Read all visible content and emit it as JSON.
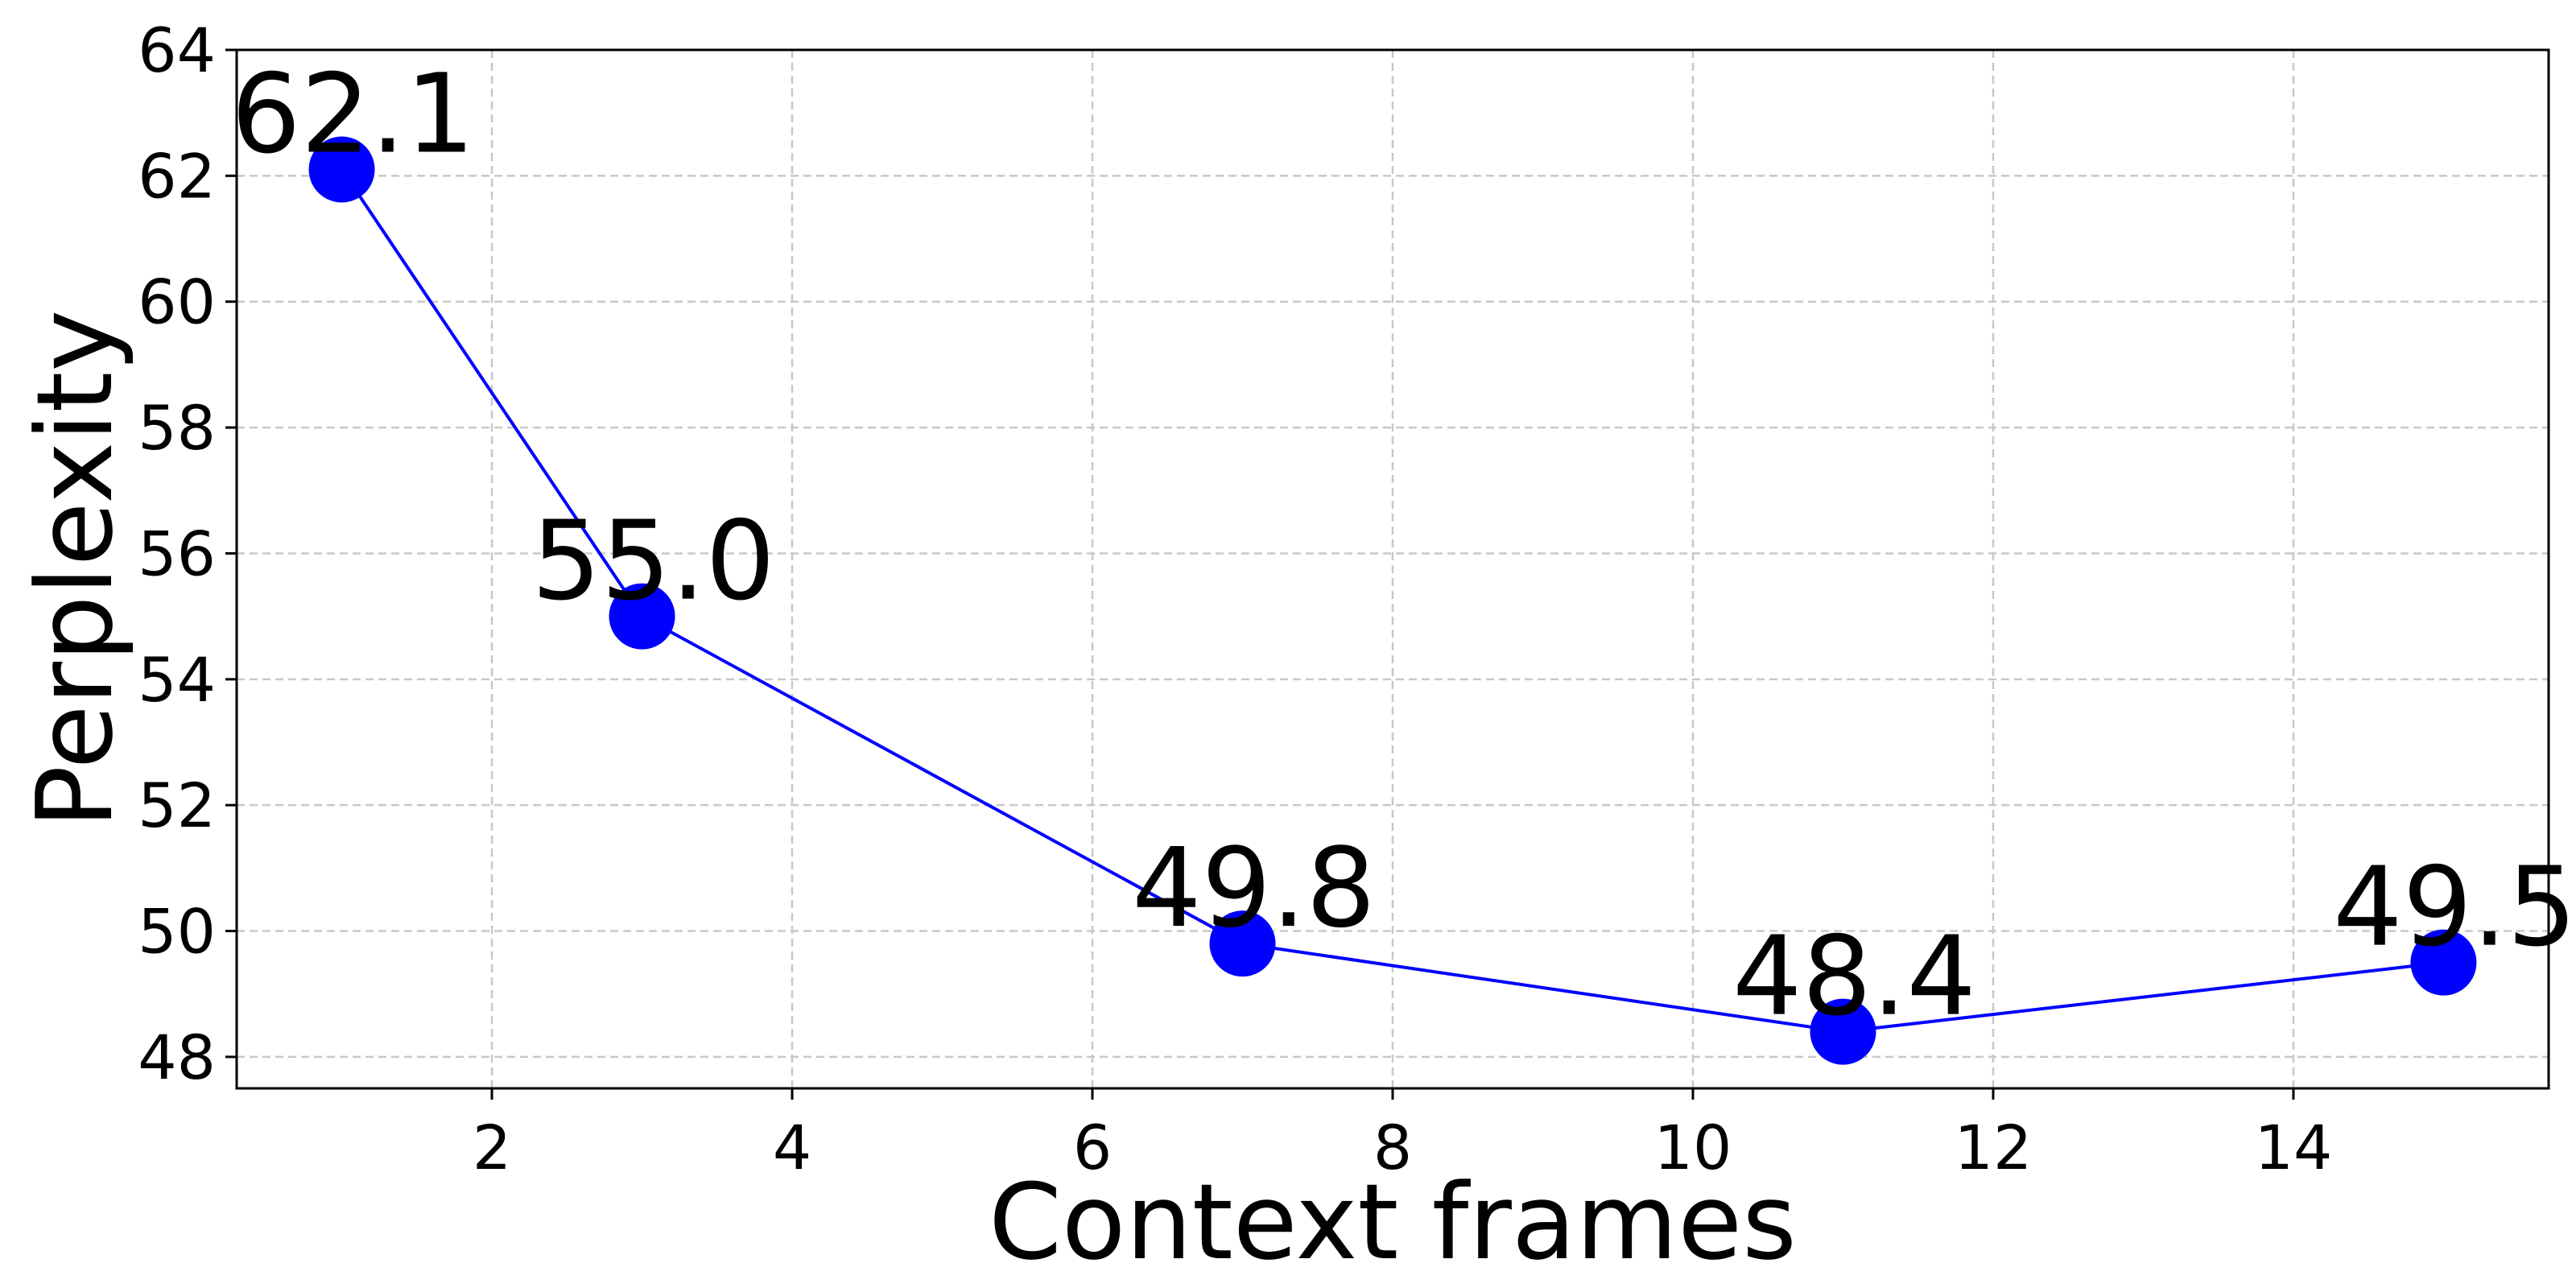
{
  "chart_data": {
    "type": "line",
    "xlabel": "Context frames",
    "ylabel": "Perplexity",
    "x": [
      1,
      3,
      7,
      11,
      15
    ],
    "series": [
      {
        "values": [
          62.1,
          55.0,
          49.8,
          48.4,
          49.5
        ],
        "labels": [
          "62.1",
          "55.0",
          "49.8",
          "48.4",
          "49.5"
        ],
        "color": "#0000ff",
        "marker": "circle"
      }
    ],
    "xlim": [
      0.3,
      15.7
    ],
    "ylim": [
      47.5,
      64
    ],
    "xticks": [
      2,
      4,
      6,
      8,
      10,
      12,
      14
    ],
    "yticks": [
      48,
      50,
      52,
      54,
      56,
      58,
      60,
      62,
      64
    ],
    "grid": true,
    "legend": "none"
  }
}
